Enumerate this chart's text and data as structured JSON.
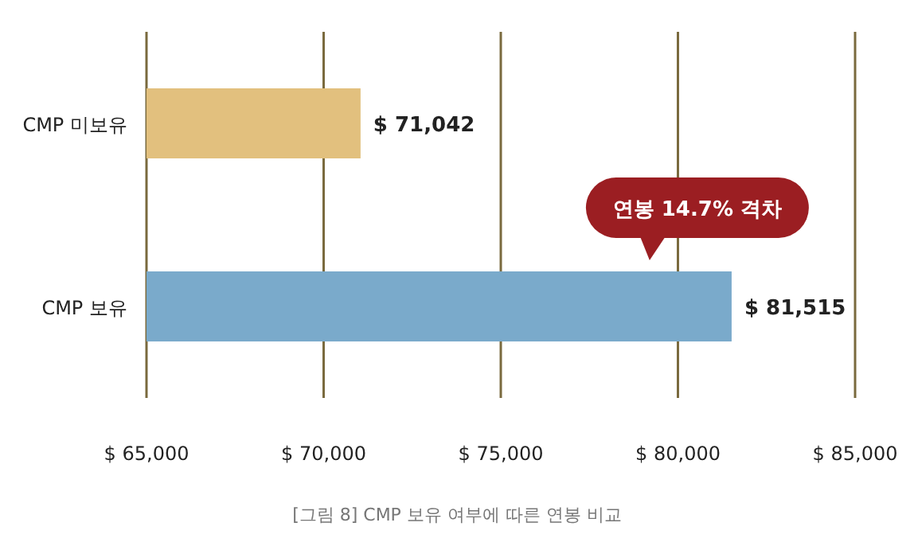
{
  "chart_data": {
    "type": "bar",
    "orientation": "horizontal",
    "categories": [
      "CMP 미보유",
      "CMP 보유"
    ],
    "values": [
      71042,
      81515
    ],
    "colors": [
      "#e2c07e",
      "#7aaacb"
    ],
    "value_labels": [
      "$ 71,042",
      "$ 81,515"
    ],
    "xlim": [
      65000,
      85000
    ],
    "xticks": [
      {
        "value": 65000,
        "label": "$ 65,000"
      },
      {
        "value": 70000,
        "label": "$ 70,000"
      },
      {
        "value": 75000,
        "label": "$ 75,000"
      },
      {
        "value": 80000,
        "label": "$ 80,000"
      },
      {
        "value": 85000,
        "label": "$ 85,000"
      }
    ],
    "grid": "x",
    "annotations": [
      "연봉 14.7% 격차",
      "[그림 8] CMP 보유 여부에 따른 연봉 비교"
    ]
  }
}
